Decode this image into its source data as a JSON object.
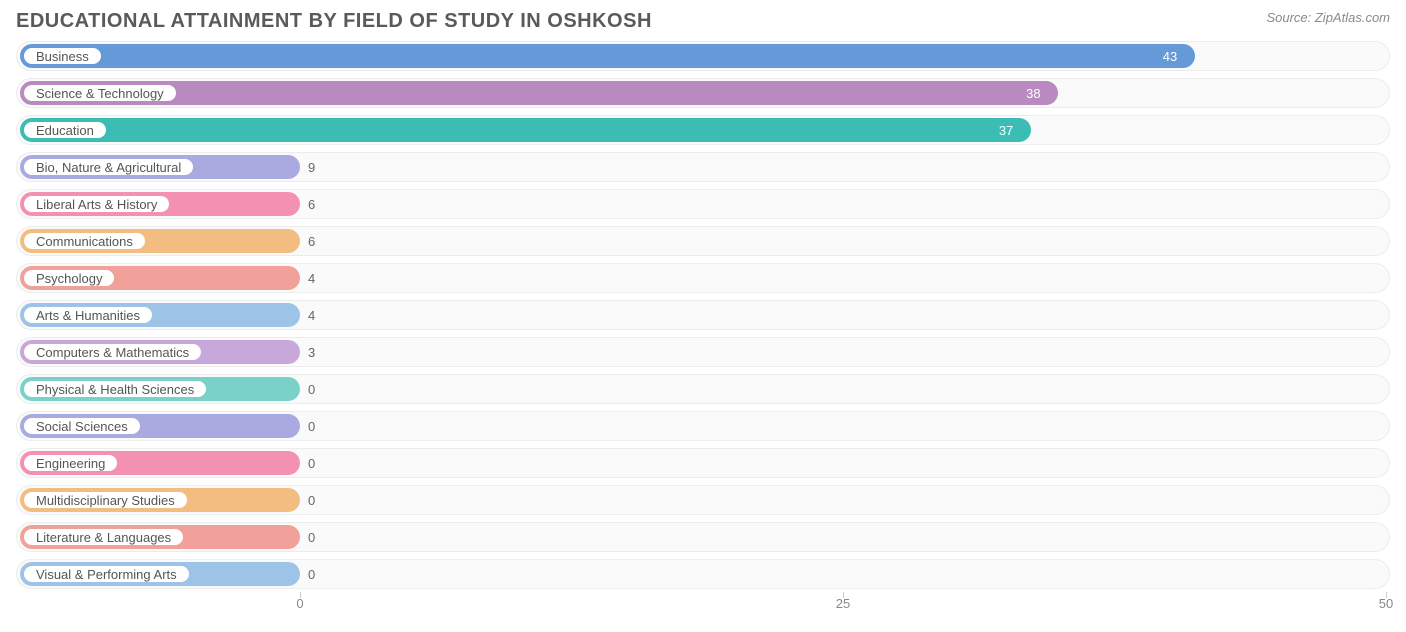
{
  "title": "EDUCATIONAL ATTAINMENT BY FIELD OF STUDY IN OSHKOSH",
  "source": "Source: ZipAtlas.com",
  "chart": {
    "type": "bar-horizontal",
    "x_min": 0,
    "x_max": 50,
    "x_ticks": [
      0,
      25,
      50
    ],
    "background_color": "#ffffff",
    "track_color": "#fafafa",
    "track_border": "#ececec",
    "text_color": "#555555",
    "label_fontsize": 13,
    "title_fontsize": 20,
    "title_color": "#5a5a5a",
    "bar_radius": 12,
    "pill_min_width": 280,
    "rows": [
      {
        "label": "Business",
        "value": 43,
        "color": "#6699d8"
      },
      {
        "label": "Science & Technology",
        "value": 38,
        "color": "#b98abf"
      },
      {
        "label": "Education",
        "value": 37,
        "color": "#3bbdb4"
      },
      {
        "label": "Bio, Nature & Agricultural",
        "value": 9,
        "color": "#a9abe0"
      },
      {
        "label": "Liberal Arts & History",
        "value": 6,
        "color": "#f491b2"
      },
      {
        "label": "Communications",
        "value": 6,
        "color": "#f3bd82"
      },
      {
        "label": "Psychology",
        "value": 4,
        "color": "#f2a19a"
      },
      {
        "label": "Arts & Humanities",
        "value": 4,
        "color": "#9dc3e6"
      },
      {
        "label": "Computers & Mathematics",
        "value": 3,
        "color": "#c6a9da"
      },
      {
        "label": "Physical & Health Sciences",
        "value": 0,
        "color": "#7ad1c8"
      },
      {
        "label": "Social Sciences",
        "value": 0,
        "color": "#a9abe0"
      },
      {
        "label": "Engineering",
        "value": 0,
        "color": "#f491b2"
      },
      {
        "label": "Multidisciplinary Studies",
        "value": 0,
        "color": "#f3bd82"
      },
      {
        "label": "Literature & Languages",
        "value": 0,
        "color": "#f2a19a"
      },
      {
        "label": "Visual & Performing Arts",
        "value": 0,
        "color": "#9dc3e6"
      }
    ]
  }
}
